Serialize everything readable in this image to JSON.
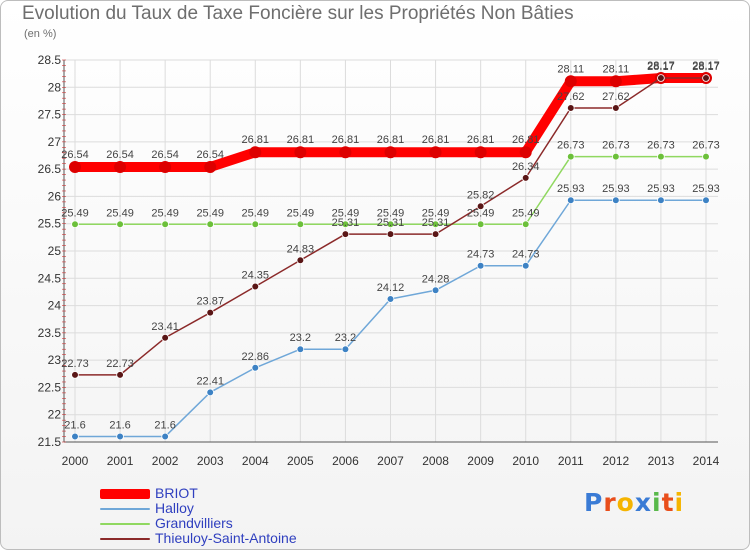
{
  "header": {
    "title": "Evolution du Taux de Taxe Foncière sur les Propriétés Non Bâties",
    "unit": "(en %)"
  },
  "logo": {
    "letters": [
      "P",
      "r",
      "o",
      "x",
      "i",
      "t",
      "i"
    ],
    "colors": [
      "#3a7bd5",
      "#e94e1b",
      "#f5b400",
      "#3a7bd5",
      "#59b94a",
      "#e94e1b",
      "#f5b400"
    ]
  },
  "chart_data": {
    "type": "line",
    "title": "Evolution du Taux de Taxe Foncière sur les Propriétés Non Bâties",
    "ylabel": "(en %)",
    "xlabel": "",
    "ylim": [
      21.5,
      28.5
    ],
    "yticks": [
      "21.5",
      "22",
      "22.5",
      "23",
      "23.5",
      "24",
      "24.5",
      "25",
      "25.5",
      "26",
      "26.5",
      "27",
      "27.5",
      "28",
      "28.5"
    ],
    "grid": true,
    "legend": "bottom-left",
    "x": [
      "2000",
      "2001",
      "2002",
      "2003",
      "2004",
      "2005",
      "2006",
      "2007",
      "2008",
      "2009",
      "2010",
      "2011",
      "2012",
      "2013",
      "2014"
    ],
    "series": [
      {
        "name": "BRIOT",
        "color": "#ff0000",
        "marker": "#dd0000",
        "width": 10,
        "values": [
          26.54,
          26.54,
          26.54,
          26.54,
          26.81,
          26.81,
          26.81,
          26.81,
          26.81,
          26.81,
          26.81,
          28.11,
          28.11,
          28.17,
          28.17
        ],
        "labels": [
          "26.54",
          "26.54",
          "26.54",
          "26.54",
          "26.81",
          "26.81",
          "26.81",
          "26.81",
          "26.81",
          "26.81",
          "26.81",
          "28.11",
          "28.11",
          "28.17",
          "28.17"
        ]
      },
      {
        "name": "Halloy",
        "color": "#6fa7d8",
        "marker": "#3d82c4",
        "width": 1.5,
        "values": [
          21.6,
          21.6,
          21.6,
          22.41,
          22.86,
          23.2,
          23.2,
          24.12,
          24.28,
          24.73,
          24.73,
          25.93,
          25.93,
          25.93,
          25.93
        ],
        "labels": [
          "21.6",
          "21.6",
          "21.6",
          "22.41",
          "22.86",
          "23.2",
          "23.2",
          "24.12",
          "24.28",
          "24.73",
          "24.73",
          "25.93",
          "25.93",
          "25.93",
          "25.93"
        ]
      },
      {
        "name": "Grandvilliers",
        "color": "#90d860",
        "marker": "#6cc03a",
        "width": 1.5,
        "values": [
          25.49,
          25.49,
          25.49,
          25.49,
          25.49,
          25.49,
          25.49,
          25.49,
          25.49,
          25.49,
          25.49,
          26.73,
          26.73,
          26.73,
          26.73
        ],
        "labels": [
          "25.49",
          "25.49",
          "25.49",
          "25.49",
          "25.49",
          "25.49",
          "25.49",
          "25.49",
          "25.49",
          "25.49",
          "25.49",
          "26.73",
          "26.73",
          "26.73",
          "26.73"
        ]
      },
      {
        "name": "Thieuloy-Saint-Antoine",
        "color": "#8b2a2a",
        "marker": "#5a1616",
        "width": 1.5,
        "values": [
          22.73,
          22.73,
          23.41,
          23.87,
          24.35,
          24.83,
          25.31,
          25.31,
          25.31,
          25.82,
          26.34,
          27.62,
          27.62,
          28.17,
          28.17
        ],
        "labels": [
          "22.73",
          "22.73",
          "23.41",
          "23.87",
          "24.35",
          "24.83",
          "25.31",
          "25.31",
          "25.31",
          "25.82",
          "26.34",
          "27.62",
          "27.62",
          "28.17",
          "28.17"
        ]
      }
    ]
  }
}
